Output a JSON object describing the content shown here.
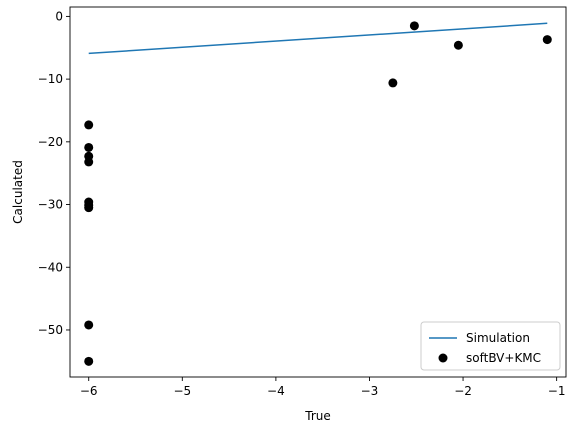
{
  "chart_data": {
    "type": "scatter",
    "xlabel": "True",
    "ylabel": "Calculated",
    "xlim": [
      -6.2,
      -0.9
    ],
    "ylim": [
      -57.5,
      1.5
    ],
    "xticks": [
      -6,
      -5,
      -4,
      -3,
      -2,
      -1
    ],
    "yticks": [
      0,
      -10,
      -20,
      -30,
      -40,
      -50
    ],
    "grid": false,
    "legend_position": "bottom-right",
    "series": [
      {
        "name": "Simulation",
        "kind": "line",
        "color": "#1f77b4",
        "x": [
          -6.0,
          -1.1
        ],
        "y": [
          -5.9,
          -1.1
        ]
      },
      {
        "name": "softBV+KMC",
        "kind": "scatter",
        "color": "#000000",
        "x": [
          -6.0,
          -6.0,
          -6.0,
          -6.0,
          -6.0,
          -6.0,
          -6.0,
          -6.0,
          -6.0,
          -2.75,
          -2.52,
          -2.05,
          -1.1
        ],
        "y": [
          -17.3,
          -20.9,
          -22.3,
          -23.2,
          -29.6,
          -30.1,
          -30.5,
          -49.2,
          -55.0,
          -10.6,
          -1.5,
          -4.6,
          -3.7
        ]
      }
    ]
  }
}
